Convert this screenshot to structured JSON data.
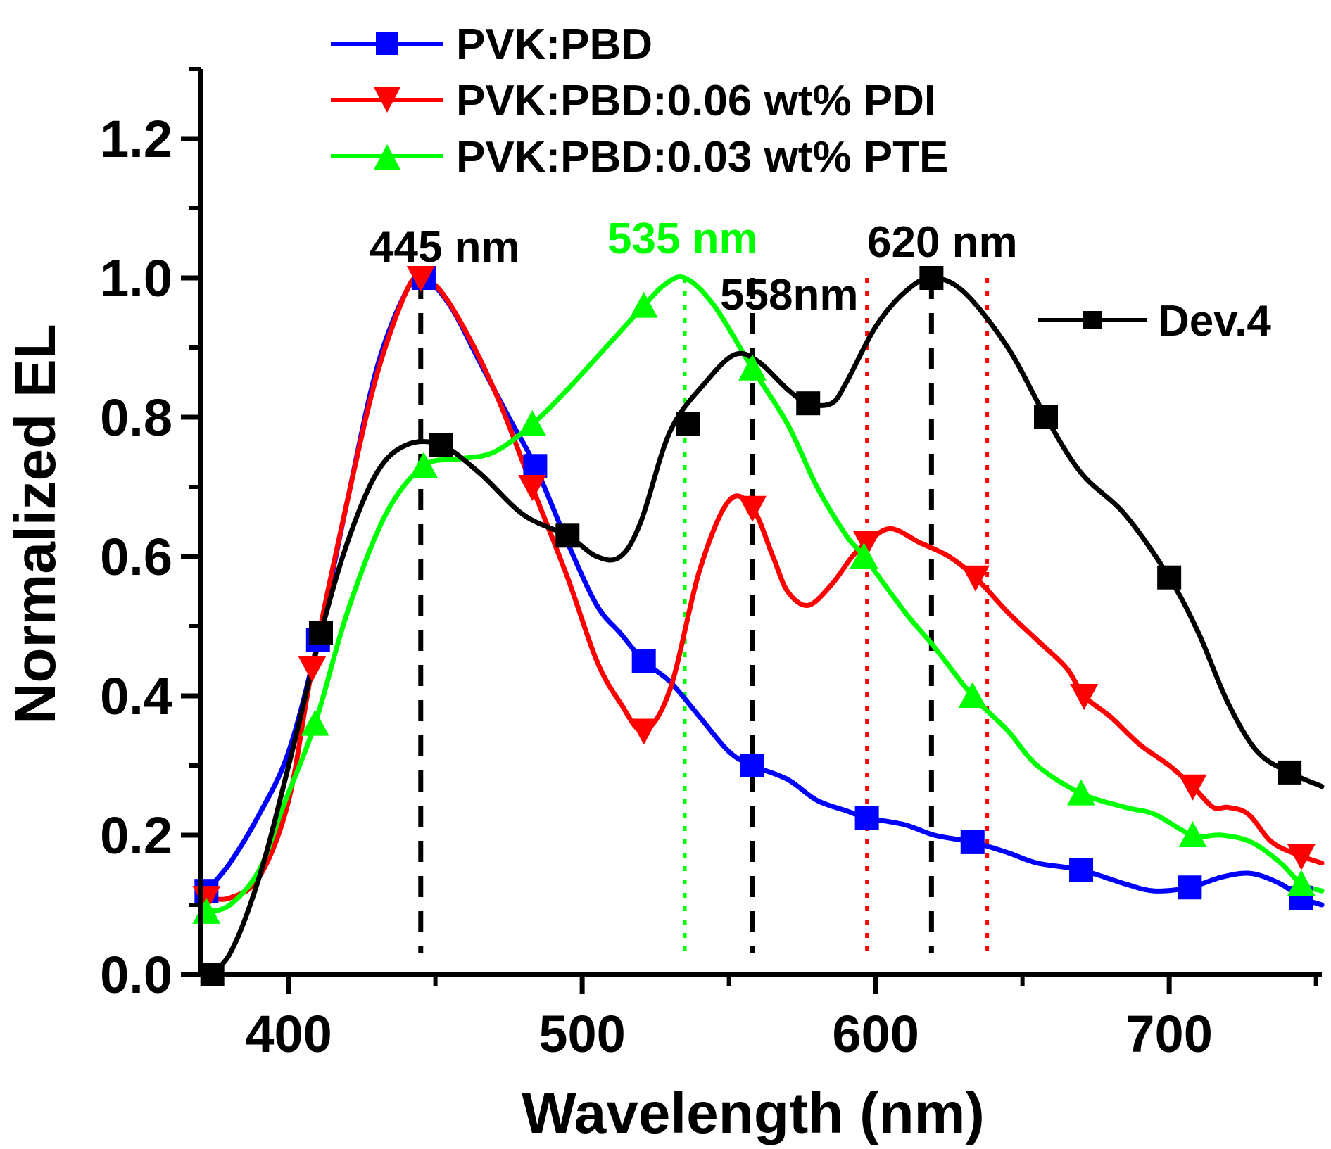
{
  "chart_data": {
    "type": "line",
    "xlabel": "Wavelength (nm)",
    "ylabel": "Normalized EL",
    "xlim": [
      370,
      752
    ],
    "ylim": [
      0,
      1.3
    ],
    "x_ticks": [
      400,
      500,
      600,
      700
    ],
    "x_tick_labels": [
      "400",
      "500",
      "600",
      "700"
    ],
    "y_ticks": [
      0.0,
      0.2,
      0.4,
      0.6,
      0.8,
      1.0,
      1.2
    ],
    "y_tick_labels": [
      "0.0",
      "0.2",
      "0.4",
      "0.6",
      "0.8",
      "1.0",
      "1.2"
    ],
    "legend": {
      "placement": "top-left"
    },
    "series": [
      {
        "name": "PVK:PBD",
        "color": "#0000ff",
        "marker": "square",
        "x": [
          372,
          380,
          390,
          400,
          410,
          420,
          430,
          440,
          446,
          455,
          465,
          475,
          484,
          495,
          505,
          513,
          521,
          530,
          540,
          550,
          558,
          570,
          580,
          590,
          597,
          610,
          620,
          633,
          645,
          655,
          670,
          685,
          695,
          707,
          718,
          728,
          738,
          745,
          752
        ],
        "y": [
          0.12,
          0.16,
          0.23,
          0.32,
          0.48,
          0.68,
          0.87,
          0.98,
          1.0,
          0.96,
          0.88,
          0.8,
          0.73,
          0.62,
          0.53,
          0.49,
          0.45,
          0.42,
          0.37,
          0.32,
          0.3,
          0.28,
          0.25,
          0.235,
          0.225,
          0.215,
          0.2,
          0.19,
          0.175,
          0.16,
          0.15,
          0.13,
          0.12,
          0.125,
          0.14,
          0.145,
          0.13,
          0.11,
          0.1
        ],
        "markers_x": [
          372,
          410,
          446,
          484,
          521,
          558,
          597,
          633,
          670,
          707,
          745
        ],
        "markers_y": [
          0.12,
          0.48,
          1.0,
          0.73,
          0.45,
          0.3,
          0.225,
          0.19,
          0.15,
          0.125,
          0.11
        ]
      },
      {
        "name": "PVK:PBD:0.06 wt% PDI",
        "color": "#ff0000",
        "marker": "triangle-down",
        "x": [
          372,
          380,
          390,
          400,
          408,
          420,
          430,
          440,
          445,
          452,
          462,
          472,
          483,
          495,
          505,
          513,
          521,
          530,
          540,
          550,
          558,
          565,
          570,
          577,
          585,
          592,
          597,
          605,
          615,
          625,
          634,
          645,
          655,
          665,
          671,
          680,
          690,
          700,
          708,
          715,
          720,
          727,
          735,
          745,
          752
        ],
        "y": [
          0.11,
          0.11,
          0.14,
          0.25,
          0.44,
          0.68,
          0.86,
          0.98,
          1.0,
          0.98,
          0.91,
          0.82,
          0.7,
          0.57,
          0.45,
          0.39,
          0.35,
          0.41,
          0.58,
          0.68,
          0.67,
          0.6,
          0.55,
          0.53,
          0.56,
          0.6,
          0.62,
          0.64,
          0.62,
          0.6,
          0.57,
          0.52,
          0.48,
          0.44,
          0.4,
          0.37,
          0.33,
          0.3,
          0.27,
          0.24,
          0.24,
          0.23,
          0.19,
          0.17,
          0.16
        ],
        "markers_x": [
          372,
          408,
          445,
          483,
          521,
          558,
          597,
          634,
          671,
          708,
          745
        ],
        "markers_y": [
          0.11,
          0.44,
          1.0,
          0.7,
          0.35,
          0.67,
          0.62,
          0.57,
          0.4,
          0.27,
          0.17
        ]
      },
      {
        "name": "PVK:PBD:0.03 wt% PTE",
        "color": "#00ff00",
        "marker": "triangle-up",
        "x": [
          372,
          380,
          390,
          398,
          409,
          420,
          433,
          446,
          458,
          470,
          483,
          495,
          508,
          521,
          528,
          535,
          545,
          558,
          570,
          580,
          590,
          596,
          610,
          620,
          633,
          645,
          655,
          670,
          685,
          695,
          708,
          718,
          728,
          738,
          745,
          752
        ],
        "y": [
          0.09,
          0.1,
          0.15,
          0.24,
          0.36,
          0.52,
          0.66,
          0.73,
          0.74,
          0.75,
          0.79,
          0.84,
          0.9,
          0.96,
          0.99,
          1.0,
          0.96,
          0.87,
          0.79,
          0.7,
          0.63,
          0.6,
          0.52,
          0.47,
          0.4,
          0.35,
          0.3,
          0.26,
          0.24,
          0.23,
          0.2,
          0.2,
          0.19,
          0.16,
          0.13,
          0.12
        ],
        "markers_x": [
          372,
          409,
          446,
          483,
          521,
          558,
          596,
          633,
          670,
          708,
          745
        ],
        "markers_y": [
          0.09,
          0.36,
          0.73,
          0.79,
          0.96,
          0.87,
          0.6,
          0.4,
          0.26,
          0.2,
          0.13
        ]
      },
      {
        "name": "Dev.4",
        "color": "#000000",
        "marker": "square",
        "x": [
          372,
          380,
          390,
          400,
          411,
          420,
          430,
          440,
          452,
          465,
          480,
          495,
          505,
          513,
          520,
          530,
          542,
          552,
          560,
          570,
          577,
          585,
          590,
          600,
          610,
          619,
          630,
          645,
          658,
          670,
          685,
          700,
          710,
          720,
          730,
          741,
          752
        ],
        "y": [
          0.0,
          0.03,
          0.14,
          0.3,
          0.49,
          0.62,
          0.72,
          0.76,
          0.76,
          0.72,
          0.66,
          0.63,
          0.6,
          0.6,
          0.65,
          0.78,
          0.85,
          0.89,
          0.88,
          0.84,
          0.82,
          0.82,
          0.85,
          0.93,
          0.98,
          1.0,
          0.98,
          0.9,
          0.8,
          0.72,
          0.66,
          0.57,
          0.49,
          0.39,
          0.32,
          0.29,
          0.27
        ],
        "markers_x": [
          374,
          411,
          452,
          495,
          536,
          577,
          619,
          658,
          700,
          741
        ],
        "markers_y": [
          0.0,
          0.49,
          0.76,
          0.63,
          0.79,
          0.82,
          1.0,
          0.8,
          0.57,
          0.29
        ]
      }
    ],
    "annotations": [
      {
        "text": "445 nm",
        "color": "#000000"
      },
      {
        "text": "535 nm",
        "color": "#00ff00"
      },
      {
        "text": "558nm",
        "color": "#000000"
      },
      {
        "text": "620 nm",
        "color": "#000000"
      }
    ],
    "reference_lines": [
      {
        "x": 445,
        "style": "dashed",
        "color": "#000000"
      },
      {
        "x": 535,
        "style": "dotted",
        "color": "#00ff00"
      },
      {
        "x": 558,
        "style": "dashed",
        "color": "#000000"
      },
      {
        "x": 597,
        "style": "dotted",
        "color": "#ff0000"
      },
      {
        "x": 619,
        "style": "dashed",
        "color": "#000000"
      },
      {
        "x": 638,
        "style": "dotted",
        "color": "#ff0000"
      }
    ]
  }
}
